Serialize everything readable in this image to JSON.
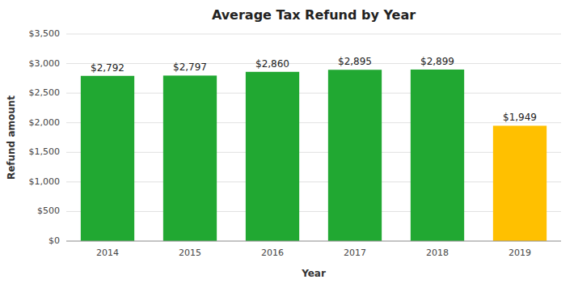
{
  "chart_data": {
    "type": "bar",
    "title": "Average Tax Refund by Year",
    "x_label": "Year",
    "y_label": "Refund amount",
    "categories": [
      "2014",
      "2015",
      "2016",
      "2017",
      "2018",
      "2019"
    ],
    "values": [
      2792,
      2797,
      2860,
      2895,
      2899,
      1949
    ],
    "value_labels": [
      "$2,792",
      "$2,797",
      "$2,860",
      "$2,895",
      "$2,899",
      "$1,949"
    ],
    "data_labels": true,
    "colors": [
      "#21a832",
      "#21a832",
      "#21a832",
      "#21a832",
      "#21a832",
      "#FFC000"
    ],
    "ylim": [
      0,
      3500
    ],
    "yticks": [
      {
        "value": 0,
        "label": "$0"
      },
      {
        "value": 500,
        "label": "$500"
      },
      {
        "value": 1000,
        "label": "$1,000"
      },
      {
        "value": 1500,
        "label": "$1,500"
      },
      {
        "value": 2000,
        "label": "$2,000"
      },
      {
        "value": 2500,
        "label": "$2,500"
      },
      {
        "value": 3000,
        "label": "$3,000"
      },
      {
        "value": 3500,
        "label": "$3,500"
      }
    ],
    "grid": true
  }
}
